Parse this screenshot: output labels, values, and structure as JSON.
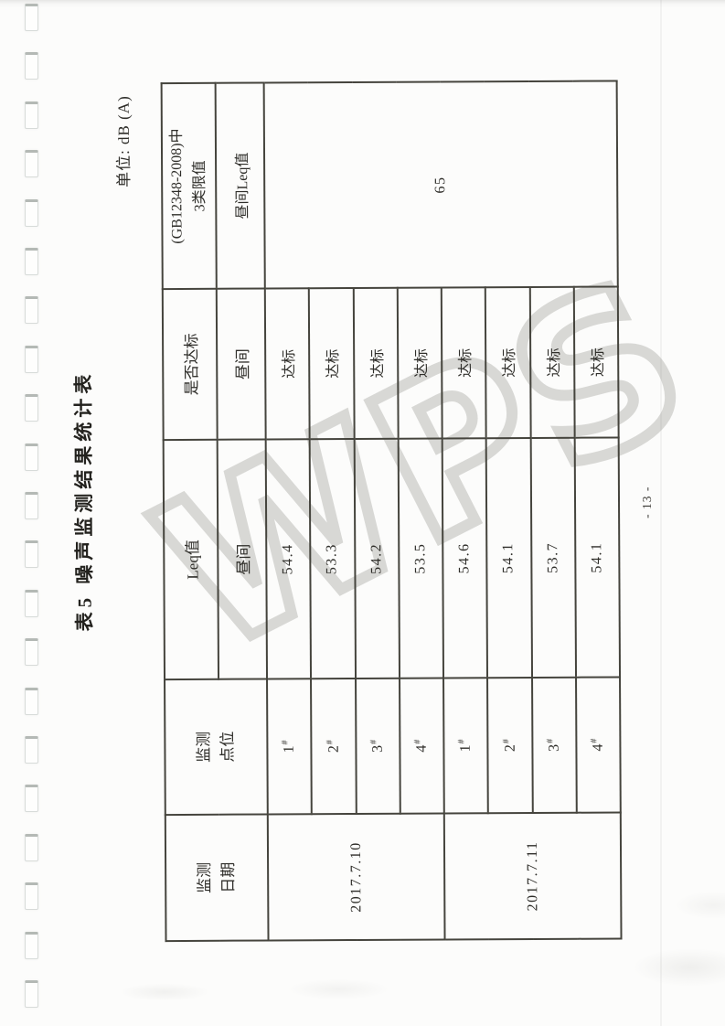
{
  "doc": {
    "title": "表5  噪声监测结果统计表",
    "unit_label": "单位: dB (A)",
    "page_number": "- 13 -"
  },
  "watermark": {
    "text": "WPS"
  },
  "scan": {
    "binding_hole_count": 21
  },
  "table": {
    "headers": {
      "date": "监测\n日期",
      "point": "监测\n点位",
      "leq": "Leq值",
      "leq_sub": "昼间",
      "compliance": "是否达标",
      "compliance_sub": "昼间",
      "limit": "(GB12348-2008)中\n3类限值",
      "limit_sub": "昼间Leq值"
    },
    "limit_value": "65",
    "date_groups": [
      {
        "date": "2017.7.10"
      },
      {
        "date": "2017.7.11"
      }
    ],
    "rows": [
      {
        "point_num": "1",
        "point_mark": "#",
        "leq": "54.4",
        "status": "达标"
      },
      {
        "point_num": "2",
        "point_mark": "#",
        "leq": "53.3",
        "status": "达标"
      },
      {
        "point_num": "3",
        "point_mark": "#",
        "leq": "54.2",
        "status": "达标"
      },
      {
        "point_num": "4",
        "point_mark": "#",
        "leq": "53.5",
        "status": "达标"
      },
      {
        "point_num": "1",
        "point_mark": "#",
        "leq": "54.6",
        "status": "达标"
      },
      {
        "point_num": "2",
        "point_mark": "#",
        "leq": "54.1",
        "status": "达标"
      },
      {
        "point_num": "3",
        "point_mark": "#",
        "leq": "53.7",
        "status": "达标"
      },
      {
        "point_num": "4",
        "point_mark": "#",
        "leq": "54.1",
        "status": "达标"
      }
    ]
  }
}
